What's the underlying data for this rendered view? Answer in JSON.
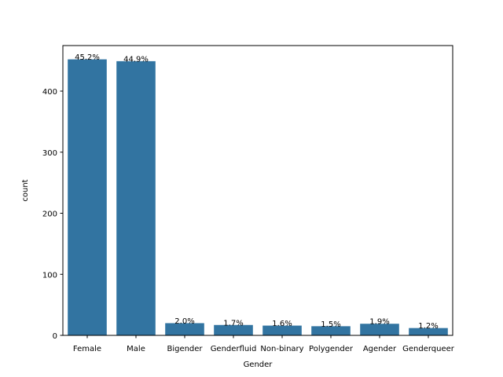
{
  "chart_data": {
    "type": "bar",
    "categories": [
      "Female",
      "Male",
      "Bigender",
      "Genderfluid",
      "Non-binary",
      "Polygender",
      "Agender",
      "Genderqueer"
    ],
    "values": [
      452,
      449,
      20,
      17,
      16,
      15,
      19,
      12
    ],
    "data_labels": [
      "45.2%",
      "44.9%",
      "2.0%",
      "1.7%",
      "1.6%",
      "1.5%",
      "1.9%",
      "1.2%"
    ],
    "xlabel": "Gender",
    "ylabel": "count",
    "ylim": [
      0,
      474.6
    ],
    "yticks": [
      0,
      100,
      200,
      300,
      400
    ],
    "bar_color": "#3274a1",
    "grid": false
  }
}
